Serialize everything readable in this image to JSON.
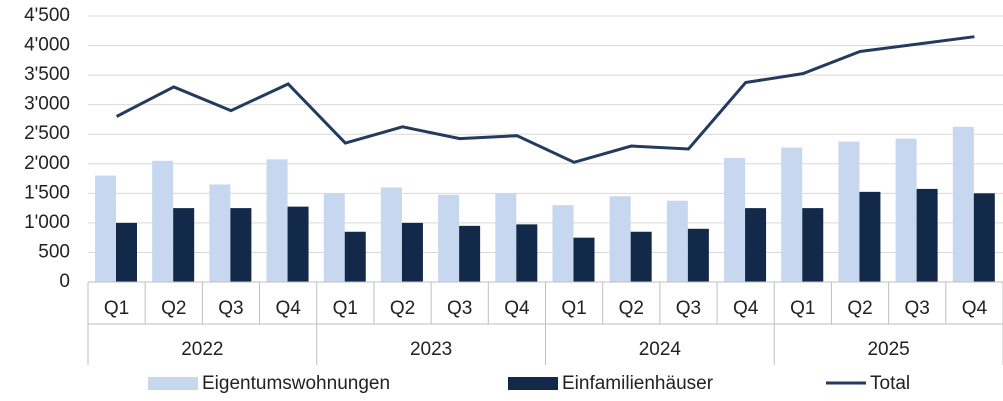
{
  "chart_data": {
    "type": "bar_line",
    "categories": [
      "Q1",
      "Q2",
      "Q3",
      "Q4",
      "Q1",
      "Q2",
      "Q3",
      "Q4",
      "Q1",
      "Q2",
      "Q3",
      "Q4",
      "Q1",
      "Q2",
      "Q3",
      "Q4"
    ],
    "category_groups": [
      "2022",
      "2023",
      "2024",
      "2025"
    ],
    "series": [
      {
        "name": "Eigentumswohnungen",
        "type": "bar",
        "color": "#c6d7ef",
        "values": [
          1800,
          2050,
          1650,
          2075,
          1500,
          1600,
          1475,
          1500,
          1300,
          1450,
          1375,
          2100,
          2275,
          2375,
          2425,
          2625
        ]
      },
      {
        "name": "Einfamilienhäuser",
        "type": "bar",
        "color": "#12294a",
        "values": [
          1000,
          1250,
          1250,
          1275,
          850,
          1000,
          950,
          975,
          750,
          850,
          900,
          1250,
          1250,
          1525,
          1575,
          1500
        ]
      },
      {
        "name": "Total",
        "type": "line",
        "color": "#243a5e",
        "values": [
          2800,
          3300,
          2900,
          3350,
          2350,
          2625,
          2425,
          2475,
          2025,
          2300,
          2250,
          3375,
          3525,
          3900,
          4025,
          4150
        ]
      }
    ],
    "ylim": [
      0,
      4500
    ],
    "yticks": [
      0,
      500,
      {
        "value": 1000,
        "label": "1'000"
      },
      {
        "value": 1500,
        "label": "1'500"
      },
      {
        "value": 2000,
        "label": "2'000"
      },
      {
        "value": 2500,
        "label": "2'500"
      },
      {
        "value": 3000,
        "label": "3'000"
      },
      {
        "value": 3500,
        "label": "3'500"
      },
      {
        "value": 4000,
        "label": "4'000"
      },
      {
        "value": 4500,
        "label": "4'500"
      }
    ],
    "grid": true,
    "legend": "bottom"
  }
}
